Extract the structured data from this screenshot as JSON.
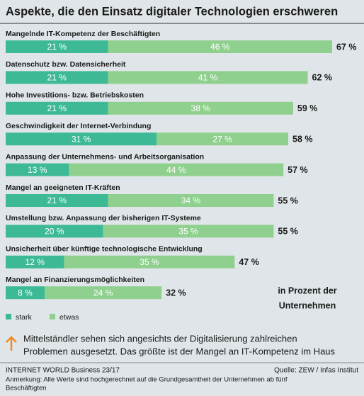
{
  "chart_data": {
    "type": "stacked-bar-horizontal",
    "title": "Aspekte, die den Einsatz digitaler Technologien erschweren",
    "categories": [
      "Mangelnde IT-Kompetenz der Beschäftigten",
      "Datenschutz bzw. Datensicherheit",
      "Hohe Investitions- bzw. Betriebskosten",
      "Geschwindigkeit der Internet-Verbindung",
      "Anpassung der Unternehmens- und Arbeitsorganisation",
      "Mangel an geeigneten IT-Kräften",
      "Umstellung bzw. Anpassung der bisherigen IT-Systeme",
      "Unsicherheit über künftige technologische Entwicklung",
      "Mangel an Finanzierungsmöglichkeiten"
    ],
    "series": [
      {
        "name": "stark",
        "color": "#3dba95",
        "values": [
          21,
          21,
          21,
          31,
          13,
          21,
          20,
          12,
          8
        ],
        "value_labels": [
          "21 %",
          "21 %",
          "21 %",
          "31 %",
          "13 %",
          "21 %",
          "20 %",
          "12 %",
          "8 %"
        ]
      },
      {
        "name": "etwas",
        "color": "#90d08e",
        "values": [
          46,
          41,
          38,
          27,
          44,
          34,
          35,
          35,
          24
        ],
        "value_labels": [
          "46 %",
          "41 %",
          "38 %",
          "27 %",
          "44 %",
          "34 %",
          "35 %",
          "35 %",
          "24 %"
        ]
      }
    ],
    "totals": [
      67,
      62,
      59,
      58,
      57,
      55,
      55,
      47,
      32
    ],
    "total_labels": [
      "67 %",
      "62 %",
      "59 %",
      "58 %",
      "57 %",
      "55 %",
      "55 %",
      "47 %",
      "32 %"
    ],
    "unit_note": [
      "in Prozent der",
      "Unternehmen"
    ],
    "note": [
      "Mittelständler sehen sich angesichts der Digitalisierung zahlreichen",
      "Problemen ausgesetzt. Das größte ist der Mangel an IT-Kompetenz im Haus"
    ],
    "publication": "INTERNET WORLD Business 23/17",
    "source": "Quelle: ZEW / Infas Institut",
    "footnote": [
      "Anmerkung: Alle Werte sind hochgerechnet auf die Grundgesamtheit der Unternehmen ab fünf",
      "Beschäftigten"
    ]
  }
}
